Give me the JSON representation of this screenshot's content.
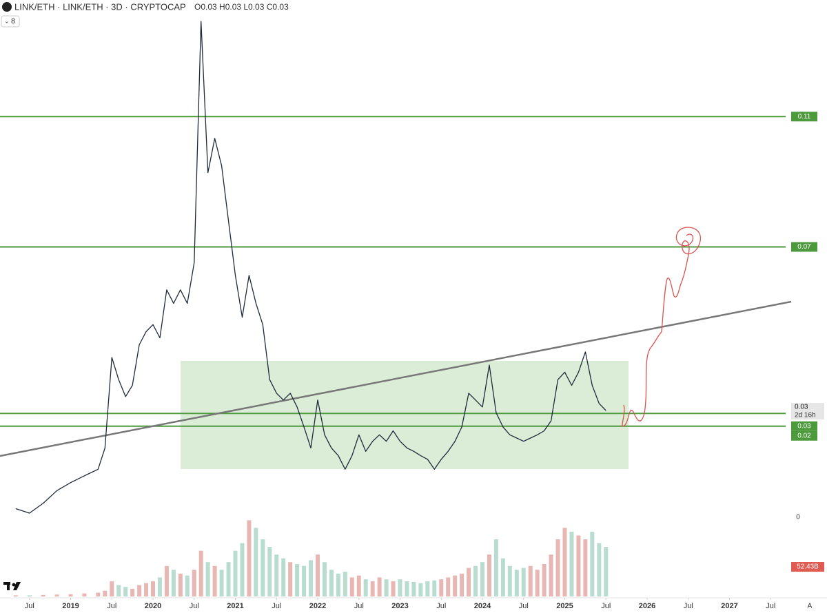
{
  "chart_data": {
    "type": "line",
    "title": "LINK/ETH · LINK/ETH · 3D · CRYPTOCAP",
    "subtitle": "O0.03 H0.03 L0.03 C0.03",
    "interval_selector": "8",
    "log_scale": true,
    "ylim": [
      0.0195,
      0.191
    ],
    "color": "#1c2a3a",
    "x": [
      "2018-05",
      "2018-07",
      "2018-09",
      "2018-11",
      "2019-01",
      "2019-03",
      "2019-05",
      "2019-06",
      "2019-07",
      "2019-08",
      "2019-09",
      "2019-10",
      "2019-11",
      "2019-12",
      "2020-01",
      "2020-02",
      "2020-03",
      "2020-04",
      "2020-05",
      "2020-06",
      "2020-07",
      "2020-08",
      "2020-09",
      "2020-10",
      "2020-11",
      "2020-12",
      "2021-01",
      "2021-02",
      "2021-03",
      "2021-04",
      "2021-05",
      "2021-06",
      "2021-07",
      "2021-08",
      "2021-09",
      "2021-10",
      "2021-11",
      "2021-12",
      "2022-01",
      "2022-02",
      "2022-03",
      "2022-04",
      "2022-05",
      "2022-06",
      "2022-07",
      "2022-08",
      "2022-09",
      "2022-10",
      "2022-11",
      "2022-12",
      "2023-01",
      "2023-02",
      "2023-03",
      "2023-04",
      "2023-05",
      "2023-06",
      "2023-07",
      "2023-08",
      "2023-09",
      "2023-10",
      "2023-11",
      "2023-12",
      "2024-01",
      "2024-02",
      "2024-03",
      "2024-04",
      "2024-05",
      "2024-06",
      "2024-07",
      "2024-08",
      "2024-09",
      "2024-10",
      "2024-11",
      "2024-12",
      "2025-01",
      "2025-02",
      "2025-03",
      "2025-04",
      "2025-05",
      "2025-06",
      "2025-07"
    ],
    "values": [
      0.0208,
      0.0204,
      0.0213,
      0.0225,
      0.0233,
      0.024,
      0.0247,
      0.0271,
      0.0402,
      0.0365,
      0.0339,
      0.0356,
      0.0425,
      0.045,
      0.0464,
      0.0438,
      0.054,
      0.0509,
      0.054,
      0.0509,
      0.0608,
      0.174,
      0.09,
      0.1045,
      0.0927,
      0.073,
      0.0575,
      0.0479,
      0.0575,
      0.0509,
      0.0464,
      0.0365,
      0.0344,
      0.0334,
      0.0344,
      0.0324,
      0.0297,
      0.0271,
      0.0334,
      0.0287,
      0.0271,
      0.0262,
      0.0247,
      0.0262,
      0.0287,
      0.0267,
      0.0279,
      0.0287,
      0.0279,
      0.0292,
      0.0279,
      0.0271,
      0.0267,
      0.0262,
      0.0258,
      0.0247,
      0.0258,
      0.0267,
      0.0279,
      0.0297,
      0.0344,
      0.0334,
      0.0324,
      0.0389,
      0.0316,
      0.0297,
      0.0287,
      0.0283,
      0.0279,
      0.0283,
      0.0287,
      0.0292,
      0.0305,
      0.0365,
      0.0377,
      0.0356,
      0.0377,
      0.0412,
      0.0356,
      0.0329,
      0.0319
    ],
    "volume": {
      "vlim": [
        0,
        300
      ],
      "up_color": "#e8b7b4",
      "down_color": "#b9dcd0",
      "values": [
        3,
        3,
        4,
        5,
        6,
        8,
        10,
        15,
        40,
        30,
        25,
        20,
        30,
        35,
        40,
        50,
        80,
        70,
        60,
        55,
        70,
        120,
        90,
        80,
        70,
        90,
        120,
        140,
        200,
        180,
        150,
        130,
        110,
        100,
        90,
        85,
        80,
        95,
        110,
        90,
        70,
        60,
        65,
        50,
        55,
        45,
        40,
        50,
        45,
        40,
        45,
        40,
        38,
        35,
        40,
        42,
        45,
        50,
        55,
        60,
        75,
        80,
        90,
        110,
        150,
        100,
        80,
        70,
        75,
        80,
        70,
        85,
        110,
        150,
        180,
        170,
        160,
        150,
        170,
        140,
        130
      ],
      "axis_labels": [
        "0",
        "52.43B"
      ]
    },
    "xticks": [
      {
        "value": "2018-07",
        "label": "Jul"
      },
      {
        "value": "2019-01",
        "label": "2019"
      },
      {
        "value": "2019-07",
        "label": "Jul"
      },
      {
        "value": "2020-01",
        "label": "2020"
      },
      {
        "value": "2020-07",
        "label": "Jul"
      },
      {
        "value": "2021-01",
        "label": "2021"
      },
      {
        "value": "2021-07",
        "label": "Jul"
      },
      {
        "value": "2022-01",
        "label": "2022"
      },
      {
        "value": "2022-07",
        "label": "Jul"
      },
      {
        "value": "2023-01",
        "label": "2023"
      },
      {
        "value": "2023-07",
        "label": "Jul"
      },
      {
        "value": "2024-01",
        "label": "2024"
      },
      {
        "value": "2024-07",
        "label": "Jul"
      },
      {
        "value": "2025-01",
        "label": "2025"
      },
      {
        "value": "2025-07",
        "label": "Jul"
      },
      {
        "value": "2026-01",
        "label": "2026"
      },
      {
        "value": "2026-07",
        "label": "Jul"
      },
      {
        "value": "2027-01",
        "label": "2027"
      },
      {
        "value": "2027-07",
        "label": "Jul"
      }
    ],
    "levels": [
      {
        "value": 0.1149,
        "label": "0.11"
      },
      {
        "value": 0.0651,
        "label": "0.07"
      },
      {
        "value": 0.0298,
        "label": "0.03"
      }
    ],
    "unlabeled_levels": [
      0.0315
    ],
    "level_color": "#4c9a3c",
    "extra_price_label": "0.02",
    "current_price": {
      "value": 0.0319,
      "label": "0.03",
      "countdown": "2d 16h"
    },
    "scale_mode": "A"
  }
}
